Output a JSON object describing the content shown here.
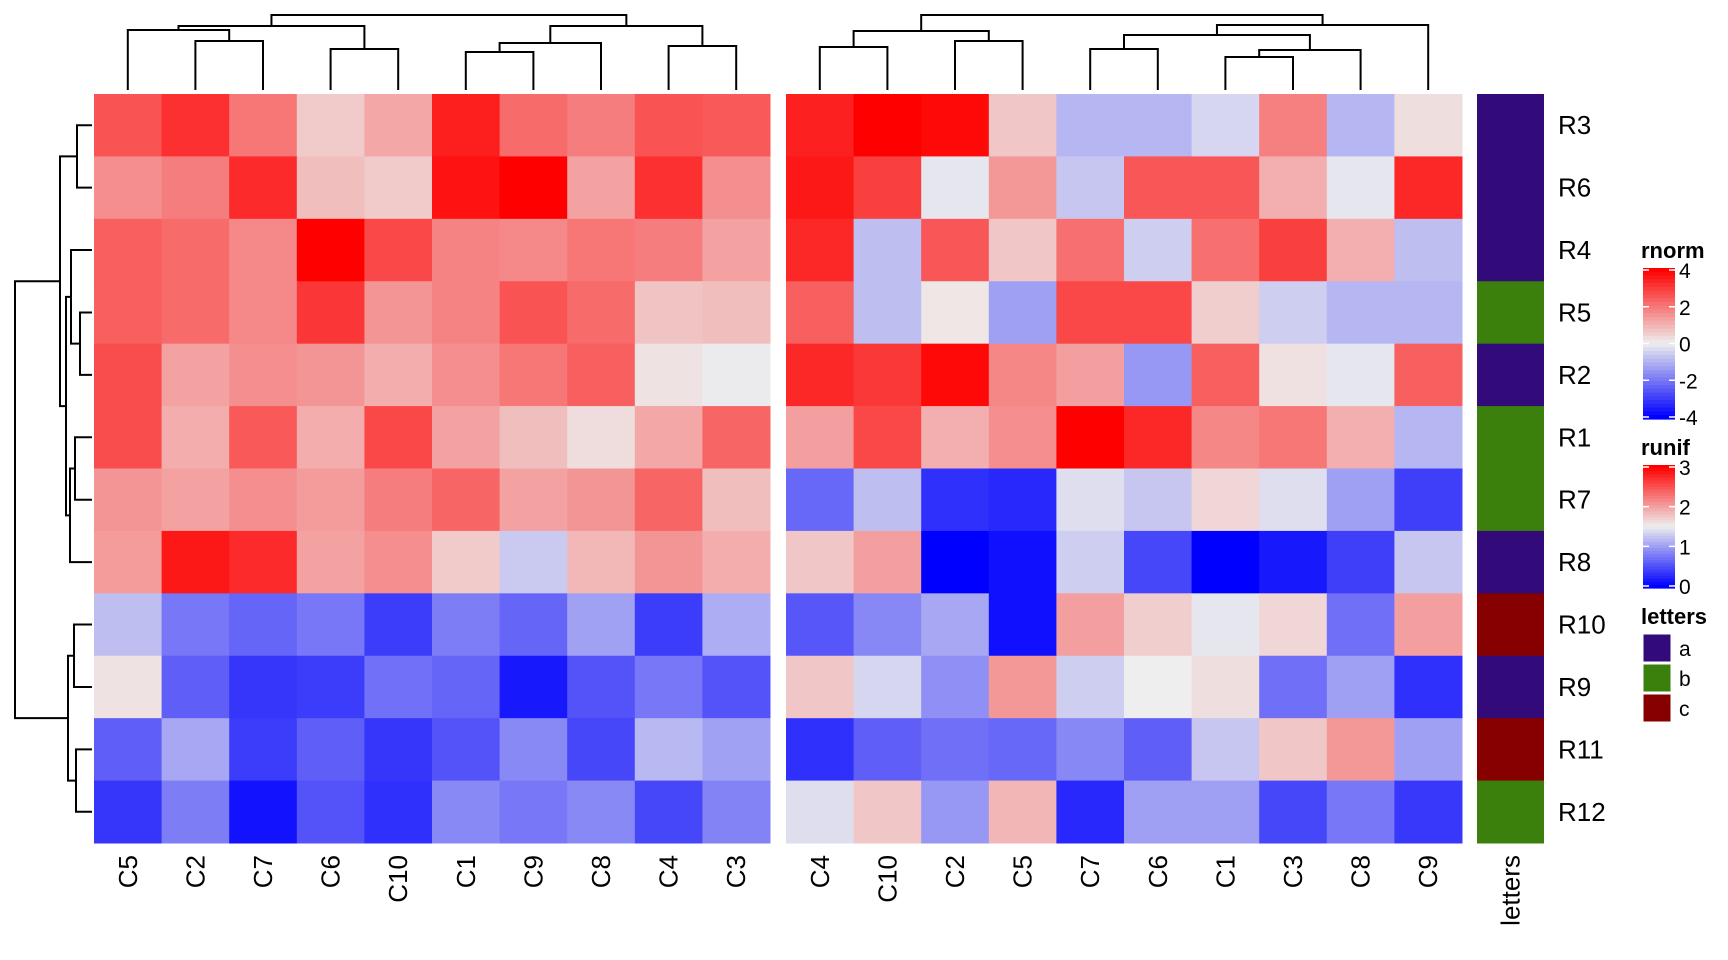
{
  "chart_data": {
    "type": "heatmap",
    "title": "",
    "layout": {
      "row_dendrogram": "left",
      "column_dendrogram": "top",
      "annotation_column": "right",
      "legend_position": "right"
    },
    "rows": [
      "R3",
      "R6",
      "R4",
      "R5",
      "R2",
      "R1",
      "R7",
      "R8",
      "R10",
      "R9",
      "R11",
      "R12"
    ],
    "heatmaps": [
      {
        "name": "rnorm",
        "columns": [
          "C5",
          "C2",
          "C7",
          "C6",
          "C10",
          "C1",
          "C9",
          "C8",
          "C4",
          "C3"
        ],
        "values": [
          [
            2.6,
            3.2,
            2.0,
            0.6,
            1.2,
            3.5,
            2.2,
            1.9,
            2.6,
            2.5
          ],
          [
            1.6,
            1.9,
            3.3,
            0.8,
            0.6,
            3.7,
            4.2,
            1.3,
            3.2,
            1.6
          ],
          [
            2.4,
            2.2,
            1.7,
            4.3,
            2.8,
            1.8,
            1.7,
            2.0,
            1.9,
            1.3
          ],
          [
            2.4,
            2.2,
            1.7,
            3.1,
            1.5,
            1.8,
            2.6,
            2.2,
            0.7,
            0.8
          ],
          [
            2.7,
            1.3,
            1.6,
            1.5,
            1.1,
            1.6,
            2.0,
            2.4,
            0.2,
            -0.05
          ],
          [
            2.7,
            1.1,
            2.5,
            1.1,
            2.8,
            1.3,
            0.8,
            0.3,
            1.2,
            2.3
          ],
          [
            1.5,
            1.3,
            1.6,
            1.4,
            1.9,
            2.3,
            1.3,
            1.5,
            2.3,
            0.8
          ],
          [
            1.4,
            3.6,
            3.3,
            1.3,
            1.6,
            0.6,
            -0.6,
            0.9,
            1.5,
            1.1
          ],
          [
            -0.8,
            -2.0,
            -2.3,
            -2.0,
            -3.0,
            -1.9,
            -2.3,
            -1.3,
            -3.0,
            -1.1
          ],
          [
            0.2,
            -2.4,
            -3.1,
            -3.0,
            -2.1,
            -2.3,
            -3.6,
            -2.6,
            -2.0,
            -2.6
          ],
          [
            -2.4,
            -1.2,
            -3.0,
            -2.4,
            -3.1,
            -2.6,
            -1.7,
            -2.8,
            -0.9,
            -1.3
          ],
          [
            -3.1,
            -1.9,
            -3.7,
            -2.6,
            -3.2,
            -1.7,
            -2.0,
            -1.7,
            -2.8,
            -1.8
          ]
        ],
        "color_scale": {
          "min": -4,
          "mid": 0,
          "max": 4,
          "low": "#0000FF",
          "midcolor": "#EEEEEE",
          "high": "#FF0000"
        }
      },
      {
        "name": "runif",
        "columns": [
          "C4",
          "C10",
          "C2",
          "C5",
          "C7",
          "C6",
          "C1",
          "C3",
          "C8",
          "C9"
        ],
        "values": [
          [
            2.8,
            3.0,
            2.95,
            1.75,
            1.15,
            1.15,
            1.35,
            2.2,
            1.15,
            1.6
          ],
          [
            2.85,
            2.6,
            1.45,
            2.05,
            1.25,
            2.45,
            2.45,
            1.9,
            1.45,
            2.75
          ],
          [
            2.75,
            1.2,
            2.45,
            1.75,
            2.3,
            1.3,
            2.3,
            2.6,
            1.9,
            1.2
          ],
          [
            2.4,
            1.2,
            1.55,
            1.0,
            2.55,
            2.55,
            1.7,
            1.3,
            1.15,
            1.15
          ],
          [
            2.75,
            2.65,
            2.95,
            2.15,
            2.0,
            0.95,
            2.4,
            1.58,
            1.45,
            2.4
          ],
          [
            2.0,
            2.55,
            1.9,
            2.1,
            3.0,
            2.75,
            2.15,
            2.25,
            1.9,
            1.15
          ],
          [
            0.65,
            1.2,
            0.3,
            0.25,
            1.4,
            1.25,
            1.65,
            1.4,
            1.0,
            0.4
          ],
          [
            1.75,
            2.0,
            0.0,
            0.1,
            1.3,
            0.45,
            0.0,
            0.15,
            0.4,
            1.25
          ],
          [
            0.55,
            0.85,
            1.05,
            0.1,
            2.0,
            1.7,
            1.45,
            1.65,
            0.7,
            2.0
          ],
          [
            1.75,
            1.35,
            0.9,
            2.05,
            1.3,
            1.5,
            1.6,
            0.7,
            1.0,
            0.3
          ],
          [
            0.3,
            0.6,
            0.7,
            0.65,
            0.85,
            0.6,
            1.25,
            1.75,
            2.05,
            1.0
          ],
          [
            1.4,
            1.75,
            0.95,
            1.85,
            0.25,
            1.0,
            1.0,
            0.45,
            0.75,
            0.35
          ]
        ],
        "color_scale": {
          "min": 0,
          "mid": 1.5,
          "max": 3,
          "low": "#0000FF",
          "midcolor": "#EEEEEE",
          "high": "#FF0000"
        }
      }
    ],
    "annotation": {
      "name": "letters",
      "values": [
        "a",
        "a",
        "a",
        "b",
        "a",
        "b",
        "b",
        "a",
        "c",
        "a",
        "c",
        "b"
      ],
      "colors": {
        "a": "#330A7A",
        "b": "#3B800D",
        "c": "#870000"
      }
    },
    "legends": [
      {
        "title": "rnorm",
        "type": "continuous",
        "ticks": [
          "4",
          "2",
          "0",
          "-2",
          "-4"
        ]
      },
      {
        "title": "runif",
        "type": "continuous",
        "ticks": [
          "3",
          "2",
          "1",
          "0"
        ]
      },
      {
        "title": "letters",
        "type": "discrete",
        "entries": [
          "a",
          "b",
          "c"
        ]
      }
    ]
  }
}
